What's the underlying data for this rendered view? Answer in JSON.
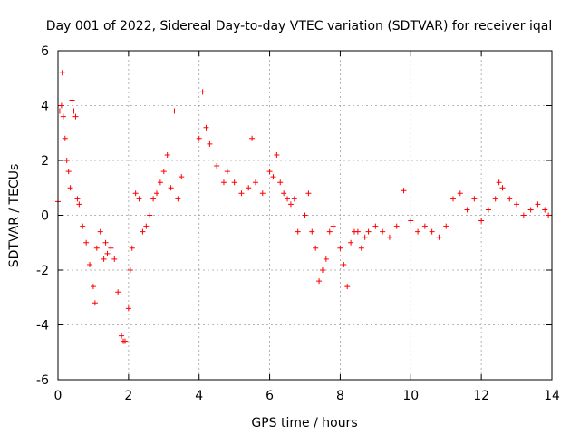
{
  "chart_data": {
    "type": "scatter",
    "title": "Day 001 of 2022, Sidereal Day-to-day VTEC variation (SDTVAR) for receiver iqal",
    "xlabel": "GPS time / hours",
    "ylabel": "SDTVAR / TECUs",
    "xlim": [
      0,
      14
    ],
    "ylim": [
      -6,
      6
    ],
    "xticks": [
      0,
      2,
      4,
      6,
      8,
      10,
      12,
      14
    ],
    "yticks": [
      -6,
      -4,
      -2,
      0,
      2,
      4,
      6
    ],
    "grid": true,
    "marker": "+",
    "color": "#ff0000",
    "series": [
      {
        "name": "iqal",
        "x": [
          0.0,
          0.05,
          0.1,
          0.12,
          0.15,
          0.2,
          0.25,
          0.3,
          0.35,
          0.4,
          0.45,
          0.5,
          0.55,
          0.6,
          0.7,
          0.8,
          0.9,
          1.0,
          1.05,
          1.1,
          1.2,
          1.3,
          1.35,
          1.4,
          1.5,
          1.6,
          1.7,
          1.8,
          1.85,
          1.9,
          2.0,
          2.05,
          2.1,
          2.2,
          2.3,
          2.4,
          2.5,
          2.6,
          2.7,
          2.8,
          2.9,
          3.0,
          3.1,
          3.2,
          3.3,
          3.4,
          3.5,
          4.0,
          4.1,
          4.2,
          4.3,
          4.5,
          4.7,
          4.8,
          5.0,
          5.2,
          5.4,
          5.5,
          5.6,
          5.8,
          6.0,
          6.1,
          6.2,
          6.3,
          6.4,
          6.5,
          6.6,
          6.7,
          6.8,
          7.0,
          7.1,
          7.2,
          7.3,
          7.4,
          7.5,
          7.6,
          7.7,
          7.8,
          8.0,
          8.1,
          8.2,
          8.3,
          8.4,
          8.5,
          8.6,
          8.7,
          8.8,
          9.0,
          9.2,
          9.4,
          9.6,
          9.8,
          10.0,
          10.2,
          10.4,
          10.6,
          10.8,
          11.0,
          11.2,
          11.4,
          11.6,
          11.8,
          12.0,
          12.2,
          12.4,
          12.5,
          12.6,
          12.8,
          13.0,
          13.2,
          13.4,
          13.6,
          13.8,
          13.9
        ],
        "y": [
          0.5,
          3.8,
          4.0,
          5.2,
          3.6,
          2.8,
          2.0,
          1.6,
          1.0,
          4.2,
          3.8,
          3.6,
          0.6,
          0.4,
          -0.4,
          -1.0,
          -1.8,
          -2.6,
          -3.2,
          -1.2,
          -0.6,
          -1.6,
          -1.0,
          -1.4,
          -1.2,
          -1.6,
          -2.8,
          -4.4,
          -4.6,
          -4.6,
          -3.4,
          -2.0,
          -1.2,
          0.8,
          0.6,
          -0.6,
          -0.4,
          0.0,
          0.6,
          0.8,
          1.2,
          1.6,
          2.2,
          1.0,
          3.8,
          0.6,
          1.4,
          2.8,
          4.5,
          3.2,
          2.6,
          1.8,
          1.2,
          1.6,
          1.2,
          0.8,
          1.0,
          2.8,
          1.2,
          0.8,
          1.6,
          1.4,
          2.2,
          1.2,
          0.8,
          0.6,
          0.4,
          0.6,
          -0.6,
          0.0,
          0.8,
          -0.6,
          -1.2,
          -2.4,
          -2.0,
          -1.6,
          -0.6,
          -0.4,
          -1.2,
          -1.8,
          -2.6,
          -1.0,
          -0.6,
          -0.6,
          -1.2,
          -0.8,
          -0.6,
          -0.4,
          -0.6,
          -0.8,
          -0.4,
          0.9,
          -0.2,
          -0.6,
          -0.4,
          -0.6,
          -0.8,
          -0.4,
          0.6,
          0.8,
          0.2,
          0.6,
          -0.2,
          0.2,
          0.6,
          1.2,
          1.0,
          0.6,
          0.4,
          0.0,
          0.2,
          0.4,
          0.2,
          0.0
        ]
      }
    ]
  }
}
